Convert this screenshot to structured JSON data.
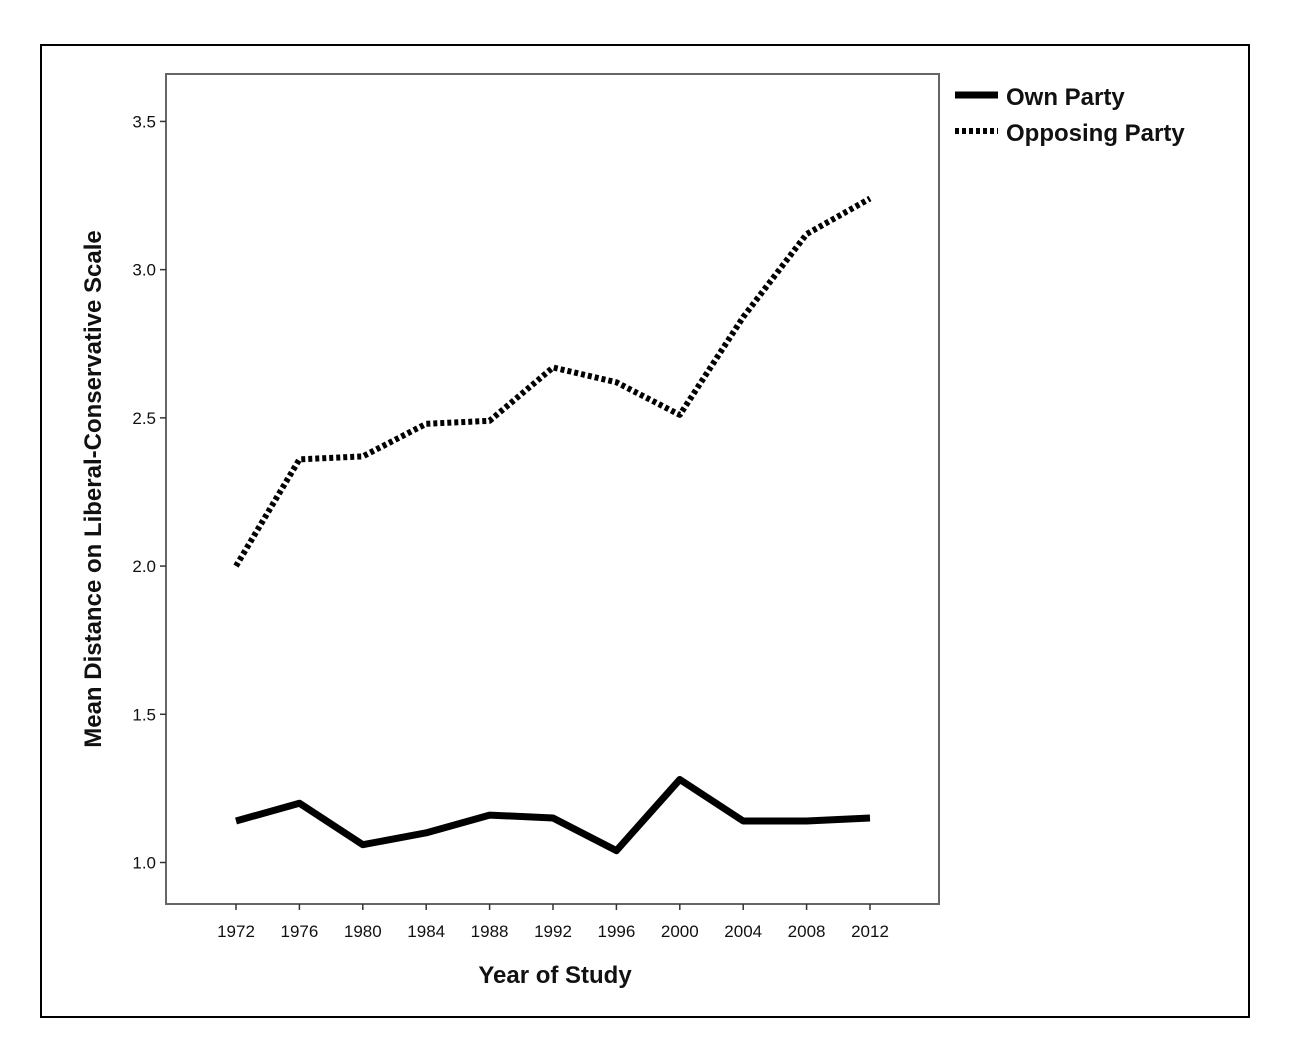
{
  "chart_data": {
    "type": "line",
    "title": "",
    "xlabel": "Year of Study",
    "ylabel": "Mean Distance on Liberal-Conservative Scale",
    "categories": [
      "1972",
      "1976",
      "1980",
      "1984",
      "1988",
      "1992",
      "1996",
      "2000",
      "2004",
      "2008",
      "2012"
    ],
    "y_ticks": [
      "1.0",
      "1.5",
      "2.0",
      "2.5",
      "3.0",
      "3.5"
    ],
    "ylim": [
      0.86,
      3.66
    ],
    "grid": false,
    "legend_position": "top-right, outside plot",
    "series": [
      {
        "name": "Own Party",
        "style": "solid",
        "color": "#000000",
        "values": [
          1.14,
          1.2,
          1.06,
          1.1,
          1.16,
          1.15,
          1.04,
          1.28,
          1.14,
          1.14,
          1.15
        ]
      },
      {
        "name": "Opposing Party",
        "style": "dotted",
        "color": "#000000",
        "values": [
          2.0,
          2.36,
          2.37,
          2.48,
          2.49,
          2.67,
          2.62,
          2.51,
          2.84,
          3.12,
          3.24
        ]
      }
    ]
  }
}
